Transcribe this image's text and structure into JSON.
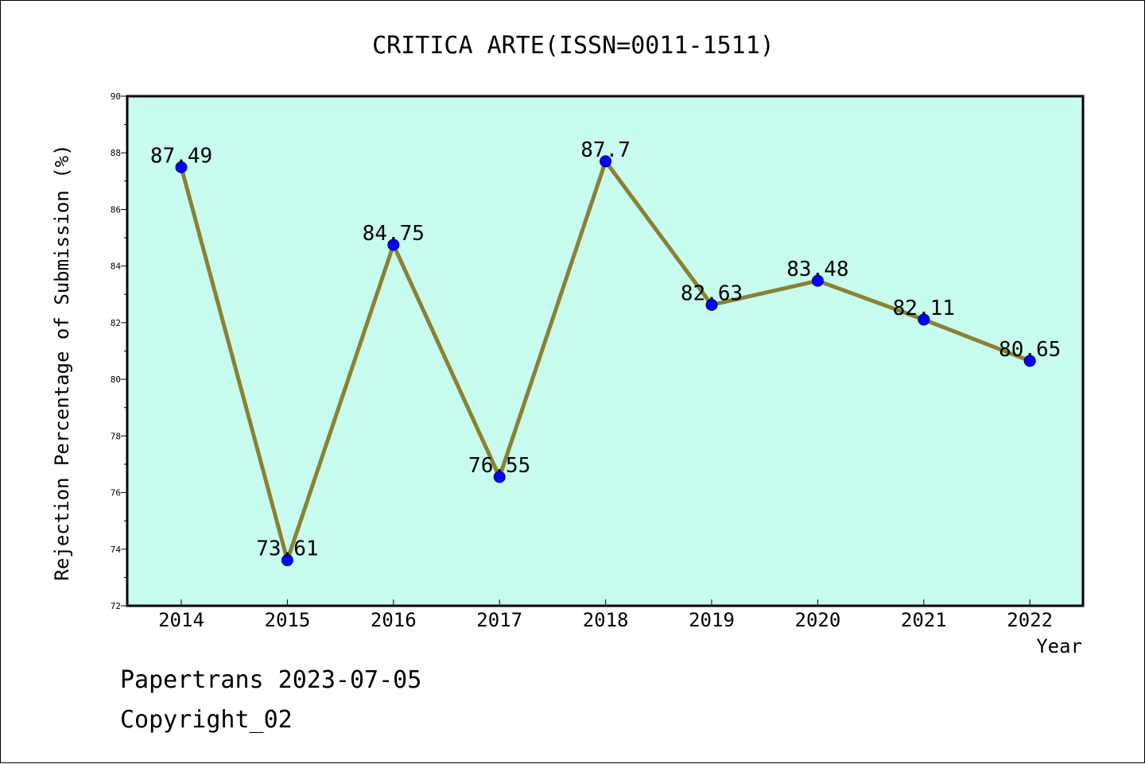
{
  "chart_data": {
    "type": "line",
    "title": "CRITICA ARTE(ISSN=0011-1511)",
    "xlabel": "Year",
    "ylabel": "Rejection Percentage of Submission (%)",
    "categories": [
      "2014",
      "2015",
      "2016",
      "2017",
      "2018",
      "2019",
      "2020",
      "2021",
      "2022"
    ],
    "values": [
      87.49,
      73.61,
      84.75,
      76.55,
      87.7,
      82.63,
      83.48,
      82.11,
      80.65
    ],
    "data_labels": [
      "87.49",
      "73.61",
      "84.75",
      "76.55",
      "87.7",
      "82.63",
      "83.48",
      "82.11",
      "80.65"
    ],
    "ylim": [
      72,
      90
    ],
    "yticks": [
      "72",
      "74",
      "76",
      "78",
      "80",
      "82",
      "84",
      "86",
      "88",
      "90"
    ],
    "grid": false,
    "colors": {
      "plot_background": "#c8fcee",
      "line": "#8b8133",
      "marker": "#0000ff"
    }
  },
  "footer": {
    "line1": "Papertrans 2023-07-05",
    "line2": "Copyright_02"
  }
}
